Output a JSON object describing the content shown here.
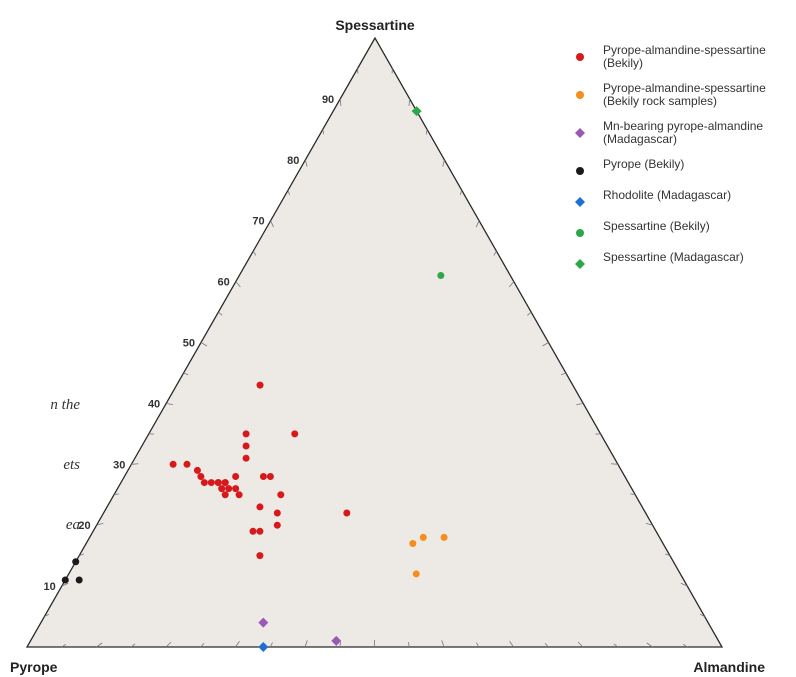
{
  "side_caption": [
    "n the",
    "ets",
    "ea"
  ],
  "chart_data": {
    "type": "ternary",
    "vertices": {
      "top": "Spessartine",
      "left": "Pyrope",
      "right": "Almandine"
    },
    "tick_labels": [
      "10",
      "20",
      "30",
      "40",
      "50",
      "60",
      "70",
      "80",
      "90"
    ],
    "tick_values": [
      10,
      20,
      30,
      40,
      50,
      60,
      70,
      80,
      90
    ],
    "legend_position": "top-right",
    "series": [
      {
        "name_lines": [
          "Pyrope-almandine-spessartine",
          "(Bekily)"
        ],
        "color": "#d7191c",
        "marker": "circle",
        "points": [
          {
            "pyrope": 64,
            "almandine": 6,
            "spessartine": 30
          },
          {
            "pyrope": 62,
            "almandine": 8,
            "spessartine": 30
          },
          {
            "pyrope": 61,
            "almandine": 10,
            "spessartine": 29
          },
          {
            "pyrope": 61,
            "almandine": 11,
            "spessartine": 28
          },
          {
            "pyrope": 61,
            "almandine": 12,
            "spessartine": 27
          },
          {
            "pyrope": 60,
            "almandine": 13,
            "spessartine": 27
          },
          {
            "pyrope": 59,
            "almandine": 14,
            "spessartine": 27
          },
          {
            "pyrope": 58,
            "almandine": 15,
            "spessartine": 27
          },
          {
            "pyrope": 58,
            "almandine": 15,
            "spessartine": 27
          },
          {
            "pyrope": 59,
            "almandine": 14,
            "spessartine": 27
          },
          {
            "pyrope": 59,
            "almandine": 16,
            "spessartine": 25
          },
          {
            "pyrope": 59,
            "almandine": 15,
            "spessartine": 26
          },
          {
            "pyrope": 58,
            "almandine": 16,
            "spessartine": 26
          },
          {
            "pyrope": 57,
            "almandine": 17,
            "spessartine": 26
          },
          {
            "pyrope": 57,
            "almandine": 18,
            "spessartine": 25
          },
          {
            "pyrope": 56,
            "almandine": 16,
            "spessartine": 28
          },
          {
            "pyrope": 53,
            "almandine": 16,
            "spessartine": 31
          },
          {
            "pyrope": 52,
            "almandine": 15,
            "spessartine": 33
          },
          {
            "pyrope": 51,
            "almandine": 14,
            "spessartine": 35
          },
          {
            "pyrope": 52,
            "almandine": 20,
            "spessartine": 28
          },
          {
            "pyrope": 51,
            "almandine": 21,
            "spessartine": 28
          },
          {
            "pyrope": 51,
            "almandine": 24,
            "spessartine": 25
          },
          {
            "pyrope": 45,
            "almandine": 12,
            "spessartine": 43
          },
          {
            "pyrope": 55,
            "almandine": 22,
            "spessartine": 23
          },
          {
            "pyrope": 59,
            "almandine": 26,
            "spessartine": 15
          },
          {
            "pyrope": 58,
            "almandine": 23,
            "spessartine": 19
          },
          {
            "pyrope": 57,
            "almandine": 24,
            "spessartine": 19
          },
          {
            "pyrope": 54,
            "almandine": 26,
            "spessartine": 20
          },
          {
            "pyrope": 53,
            "almandine": 25,
            "spessartine": 22
          },
          {
            "pyrope": 44,
            "almandine": 21,
            "spessartine": 35
          },
          {
            "pyrope": 43,
            "almandine": 35,
            "spessartine": 22
          }
        ]
      },
      {
        "name_lines": [
          "Pyrope-almandine-spessartine",
          "(Bekily rock samples)"
        ],
        "color": "#f58e1c",
        "marker": "circle",
        "points": [
          {
            "pyrope": 36,
            "almandine": 47,
            "spessartine": 17
          },
          {
            "pyrope": 34,
            "almandine": 48,
            "spessartine": 18
          },
          {
            "pyrope": 31,
            "almandine": 51,
            "spessartine": 18
          },
          {
            "pyrope": 38,
            "almandine": 50,
            "spessartine": 12
          }
        ]
      },
      {
        "name_lines": [
          "Mn-bearing pyrope-almandine",
          "(Madagascar)"
        ],
        "color": "#9b59b6",
        "marker": "diamond",
        "points": [
          {
            "pyrope": 64,
            "almandine": 32,
            "spessartine": 4
          },
          {
            "pyrope": 55,
            "almandine": 44,
            "spessartine": 1
          }
        ]
      },
      {
        "name_lines": [
          "Pyrope (Bekily)"
        ],
        "color": "#1a1a1a",
        "marker": "circle",
        "points": [
          {
            "pyrope": 86,
            "almandine": 0,
            "spessartine": 14
          },
          {
            "pyrope": 89,
            "almandine": 0,
            "spessartine": 11
          },
          {
            "pyrope": 87,
            "almandine": 2,
            "spessartine": 11
          }
        ]
      },
      {
        "name_lines": [
          "Rhodolite (Madagascar)"
        ],
        "color": "#1f6fd1",
        "marker": "diamond",
        "points": [
          {
            "pyrope": 66,
            "almandine": 34,
            "spessartine": 0
          }
        ]
      },
      {
        "name_lines": [
          "Spessartine (Bekily)"
        ],
        "color": "#2ca84a",
        "marker": "circle",
        "points": [
          {
            "pyrope": 10,
            "almandine": 29,
            "spessartine": 61
          }
        ]
      },
      {
        "name_lines": [
          "Spessartine (Madagascar)"
        ],
        "color": "#2ca84a",
        "marker": "diamond",
        "points": [
          {
            "pyrope": 0,
            "almandine": 12,
            "spessartine": 88
          }
        ]
      }
    ]
  },
  "colors": {
    "plot_fill": "#ede9e4",
    "frame": "#2a2a2a",
    "tick": "#777777"
  }
}
